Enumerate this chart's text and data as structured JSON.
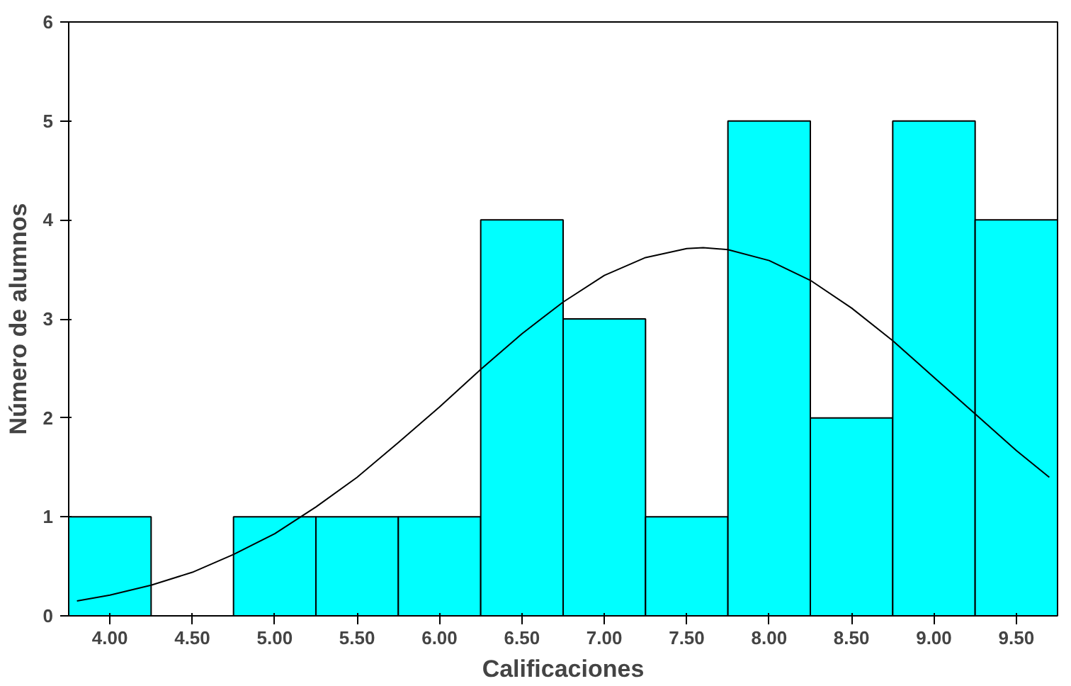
{
  "chart_data": {
    "type": "histogram",
    "xlabel": "Calificaciones",
    "ylabel": "Número de alumnos",
    "bins": [
      3.75,
      4.25,
      4.75,
      5.25,
      5.75,
      6.25,
      6.75,
      7.25,
      7.75,
      8.25,
      8.75,
      9.25,
      9.75
    ],
    "values": [
      1,
      0,
      1,
      1,
      1,
      4,
      3,
      1,
      5,
      2,
      5,
      4
    ],
    "color": "#00ffff",
    "series": [
      {
        "type": "line",
        "color": "#000000",
        "x": [
          3.8,
          4.0,
          4.25,
          4.5,
          4.75,
          5.0,
          5.25,
          5.5,
          5.75,
          6.0,
          6.25,
          6.5,
          6.75,
          7.0,
          7.25,
          7.5,
          7.6,
          7.75,
          8.0,
          8.25,
          8.5,
          8.75,
          9.0,
          9.25,
          9.5,
          9.7
        ],
        "values": [
          0.15,
          0.21,
          0.31,
          0.44,
          0.62,
          0.83,
          1.1,
          1.4,
          1.75,
          2.11,
          2.49,
          2.85,
          3.17,
          3.44,
          3.62,
          3.71,
          3.72,
          3.7,
          3.59,
          3.39,
          3.11,
          2.78,
          2.41,
          2.04,
          1.67,
          1.4
        ]
      }
    ],
    "xlim": [
      3.75,
      9.75
    ],
    "ylim": [
      0,
      6
    ],
    "xticks": [
      {
        "value": 4,
        "label": "4.00"
      },
      {
        "value": 4.5,
        "label": "4.50"
      },
      {
        "value": 5,
        "label": "5.00"
      },
      {
        "value": 5.5,
        "label": "5.50"
      },
      {
        "value": 6,
        "label": "6.00"
      },
      {
        "value": 6.5,
        "label": "6.50"
      },
      {
        "value": 7,
        "label": "7.00"
      },
      {
        "value": 7.5,
        "label": "7.50"
      },
      {
        "value": 8,
        "label": "8.00"
      },
      {
        "value": 8.5,
        "label": "8.50"
      },
      {
        "value": 9,
        "label": "9.00"
      },
      {
        "value": 9.5,
        "label": "9.50"
      }
    ],
    "yticks": [
      0,
      1,
      2,
      3,
      4,
      5,
      6
    ],
    "grid": false
  }
}
